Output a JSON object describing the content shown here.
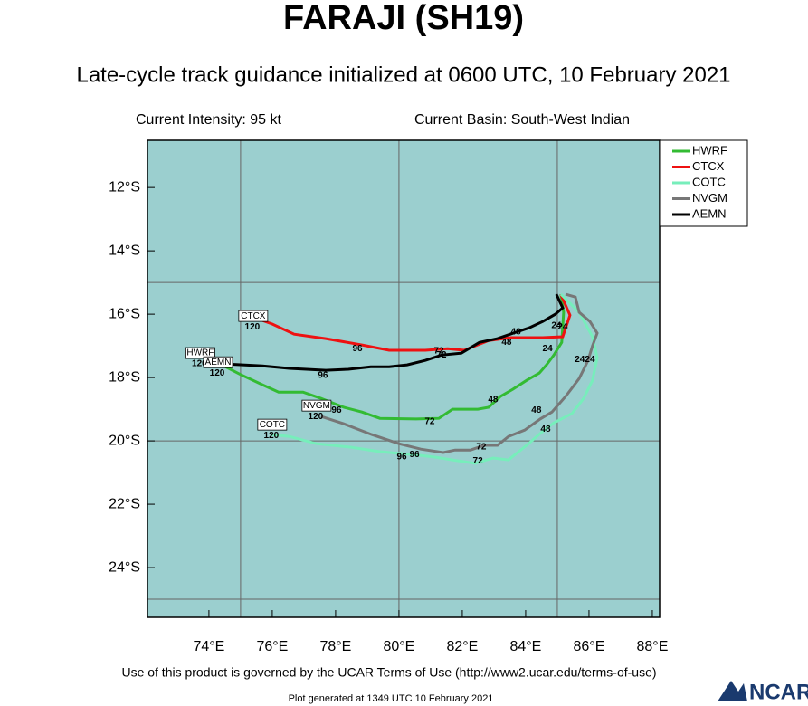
{
  "chart_data": {
    "type": "track",
    "title": "FARAJI (SH19)",
    "subtitle": "Late-cycle track guidance initialized at 0600 UTC, 10 February 2021",
    "intensity": "Current Intensity: 95 kt",
    "basin": "Current Basin: South-West Indian",
    "footer": "Use of this product is governed by the UCAR Terms of Use (http://www2.ucar.edu/terms-of-use)",
    "generated": "Plot generated at 1349 UTC   10 February 2021",
    "logo": "NCAR",
    "xlim": [
      72.06,
      88.23
    ],
    "ylim": [
      -25.57,
      -10.51
    ],
    "xticks": [
      {
        "value": 74,
        "label": "74°E"
      },
      {
        "value": 76,
        "label": "76°E"
      },
      {
        "value": 78,
        "label": "78°E"
      },
      {
        "value": 80,
        "label": "80°E"
      },
      {
        "value": 82,
        "label": "82°E"
      },
      {
        "value": 84,
        "label": "84°E"
      },
      {
        "value": 86,
        "label": "86°E"
      },
      {
        "value": 88,
        "label": "88°E"
      }
    ],
    "yticks": [
      {
        "value": -12,
        "label": "12°S"
      },
      {
        "value": -14,
        "label": "14°S"
      },
      {
        "value": -16,
        "label": "16°S"
      },
      {
        "value": -18,
        "label": "18°S"
      },
      {
        "value": -20,
        "label": "20°S"
      },
      {
        "value": -22,
        "label": "22°S"
      },
      {
        "value": -24,
        "label": "24°S"
      }
    ],
    "grid_x": [
      75,
      80,
      85
    ],
    "grid_y": [
      -15,
      -20,
      -25
    ],
    "background": "#9bcfcf",
    "tau": [
      24,
      48,
      72,
      96,
      120
    ],
    "series": [
      {
        "name": "HWRF",
        "color": "#33bb33",
        "x": [
          85.11,
          85.2,
          85.14,
          84.89,
          84.66,
          84.43,
          84.03,
          83.6,
          83.2,
          82.83,
          82.49,
          81.69,
          81.26,
          80.54,
          79.4,
          78.83,
          78.26,
          77.54,
          76.97,
          76.2,
          75.69,
          74.97,
          74.4
        ],
        "values": [
          -15.37,
          -15.94,
          -16.89,
          -17.29,
          -17.6,
          -17.86,
          -18.09,
          -18.37,
          -18.6,
          -18.94,
          -19.0,
          -19.0,
          -19.29,
          -19.31,
          -19.29,
          -19.09,
          -18.94,
          -18.66,
          -18.46,
          -18.46,
          -18.23,
          -17.89,
          -17.6
        ],
        "tau_x": [
          84.69,
          82.97,
          80.97,
          78.03,
          73.7
        ],
        "tau_y": [
          -17.09,
          -18.71,
          -19.4,
          -19.03,
          -17.57
        ]
      },
      {
        "name": "CTCX",
        "color": "#ee1111",
        "x": [
          85.11,
          85.4,
          85.17,
          84.54,
          83.54,
          82.83,
          82.06,
          81.54,
          80.83,
          80.26,
          79.69,
          78.83,
          77.69,
          76.69,
          76.0,
          75.69
        ],
        "values": [
          -15.37,
          -16.03,
          -16.71,
          -16.74,
          -16.74,
          -16.83,
          -17.14,
          -17.09,
          -17.14,
          -17.14,
          -17.14,
          -16.97,
          -16.77,
          -16.63,
          -16.31,
          -16.2
        ],
        "tau_x": [
          84.97,
          83.4,
          81.26,
          78.69,
          75.37
        ],
        "tau_y": [
          -16.37,
          -16.89,
          -17.17,
          -17.09,
          -16.4
        ]
      },
      {
        "name": "COTC",
        "color": "#77eebb",
        "x": [
          85.11,
          85.69,
          86.11,
          86.26,
          86.11,
          85.83,
          85.46,
          84.89,
          84.49,
          84.03,
          83.46,
          82.97,
          82.4,
          81.69,
          81.11,
          80.4,
          79.4,
          78.49,
          77.4,
          76.54,
          75.97
        ],
        "values": [
          -15.37,
          -15.94,
          -16.71,
          -17.37,
          -18.09,
          -18.66,
          -19.14,
          -19.43,
          -19.74,
          -20.14,
          -20.6,
          -20.54,
          -20.71,
          -20.6,
          -20.51,
          -20.43,
          -20.34,
          -20.2,
          -20.09,
          -19.86,
          -19.8
        ],
        "tau_x": [
          86.03,
          84.63,
          82.49,
          80.09,
          75.97
        ],
        "tau_y": [
          -17.43,
          -19.63,
          -20.63,
          -20.51,
          -19.83
        ]
      },
      {
        "name": "NVGM",
        "color": "#777777",
        "x": [
          85.26,
          85.57,
          85.69,
          86.03,
          86.26,
          86.11,
          85.97,
          85.69,
          85.26,
          84.83,
          84.46,
          83.97,
          83.46,
          83.11,
          82.69,
          82.26,
          81.77,
          81.4,
          80.69,
          80.0,
          79.14,
          78.26,
          77.54
        ],
        "values": [
          -15.37,
          -15.46,
          -15.94,
          -16.23,
          -16.6,
          -17.0,
          -17.46,
          -18.03,
          -18.6,
          -19.09,
          -19.31,
          -19.66,
          -19.86,
          -20.14,
          -20.14,
          -20.29,
          -20.29,
          -20.37,
          -20.26,
          -20.09,
          -19.8,
          -19.46,
          -19.23
        ],
        "tau_x": [
          85.71,
          84.34,
          82.6,
          80.49,
          77.37
        ],
        "tau_y": [
          -17.43,
          -19.03,
          -20.2,
          -20.43,
          -19.23
        ]
      },
      {
        "name": "AEMN",
        "color": "#000000",
        "x": [
          84.97,
          85.17,
          84.94,
          84.54,
          84.11,
          83.69,
          83.11,
          82.54,
          81.97,
          81.34,
          80.83,
          80.26,
          79.69,
          79.11,
          78.4,
          77.69,
          76.54,
          75.69,
          74.54
        ],
        "values": [
          -15.37,
          -15.8,
          -16.0,
          -16.23,
          -16.43,
          -16.57,
          -16.77,
          -16.89,
          -17.23,
          -17.29,
          -17.46,
          -17.6,
          -17.66,
          -17.66,
          -17.74,
          -17.77,
          -17.71,
          -17.63,
          -17.57
        ],
        "tau_x": [
          85.17,
          83.69,
          81.34,
          77.6,
          74.26
        ],
        "tau_y": [
          -16.4,
          -16.57,
          -17.29,
          -17.94,
          -17.86
        ]
      }
    ]
  }
}
